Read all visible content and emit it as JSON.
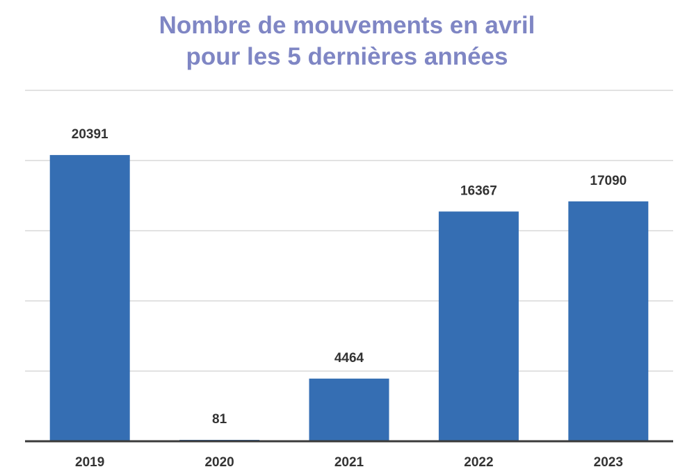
{
  "chart_data": {
    "type": "bar",
    "title_lines": [
      "Nombre de mouvements en avril",
      "pour les 5 dernières années"
    ],
    "categories": [
      "2019",
      "2020",
      "2021",
      "2022",
      "2023"
    ],
    "values": [
      20391,
      81,
      4464,
      16367,
      17090
    ],
    "xlabel": "",
    "ylabel": "",
    "ylim": [
      0,
      25000
    ],
    "grid": true,
    "legend": "none",
    "bar_color": "#356eb3",
    "title_color": "#7f86c4"
  }
}
